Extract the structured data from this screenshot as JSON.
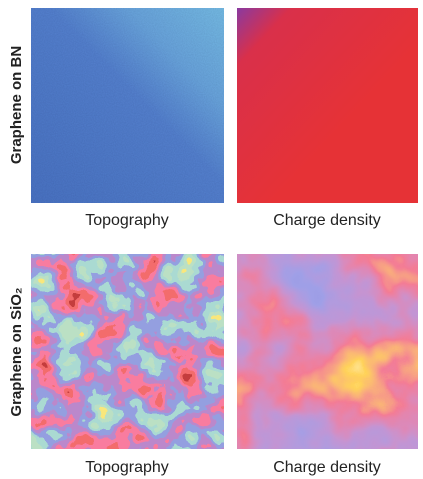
{
  "rows": [
    {
      "label": "Graphene on BN",
      "panels": [
        {
          "caption": "Topography"
        },
        {
          "caption": "Charge density"
        }
      ]
    },
    {
      "label": "Graphene on SiO₂",
      "panels": [
        {
          "caption": "Topography"
        },
        {
          "caption": "Charge density"
        }
      ]
    }
  ]
}
